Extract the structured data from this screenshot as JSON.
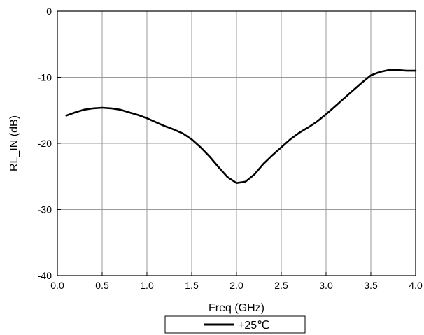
{
  "chart_data": {
    "type": "line",
    "xlabel": "Freq (GHz)",
    "ylabel": "RL_IN (dB)",
    "xlim": [
      0.0,
      4.0
    ],
    "ylim": [
      -40,
      0
    ],
    "xticks": [
      "0.0",
      "0.5",
      "1.0",
      "1.5",
      "2.0",
      "2.5",
      "3.0",
      "3.5",
      "4.0"
    ],
    "yticks": [
      "0",
      "-10",
      "-20",
      "-30",
      "-40"
    ],
    "grid": true,
    "legend_position": "bottom-center",
    "series": [
      {
        "name": "+25℃",
        "color": "#000000",
        "x": [
          0.1,
          0.2,
          0.3,
          0.4,
          0.5,
          0.6,
          0.7,
          0.8,
          0.9,
          1.0,
          1.1,
          1.2,
          1.3,
          1.4,
          1.5,
          1.6,
          1.7,
          1.8,
          1.9,
          2.0,
          2.1,
          2.2,
          2.3,
          2.4,
          2.5,
          2.6,
          2.7,
          2.8,
          2.9,
          3.0,
          3.1,
          3.2,
          3.3,
          3.4,
          3.5,
          3.6,
          3.7,
          3.8,
          3.9,
          4.0
        ],
        "y": [
          -15.8,
          -15.3,
          -14.9,
          -14.7,
          -14.6,
          -14.7,
          -14.9,
          -15.3,
          -15.7,
          -16.2,
          -16.8,
          -17.4,
          -17.9,
          -18.5,
          -19.4,
          -20.6,
          -22.0,
          -23.6,
          -25.1,
          -26.0,
          -25.8,
          -24.7,
          -23.1,
          -21.8,
          -20.6,
          -19.4,
          -18.4,
          -17.6,
          -16.7,
          -15.6,
          -14.4,
          -13.2,
          -12.0,
          -10.8,
          -9.7,
          -9.2,
          -8.9,
          -8.9,
          -9.0,
          -9.0
        ]
      }
    ]
  }
}
